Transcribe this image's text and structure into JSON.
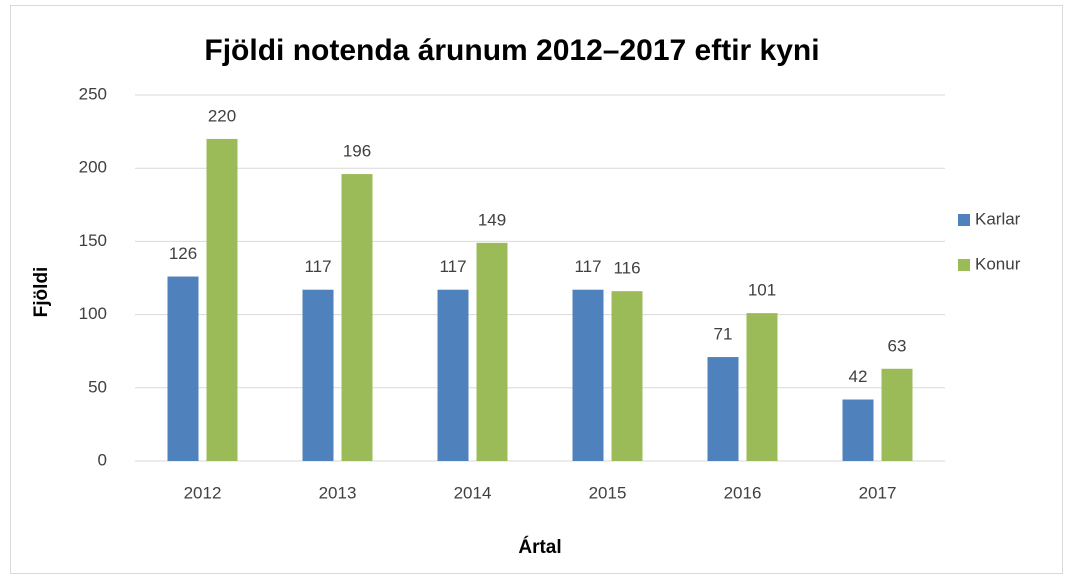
{
  "chart_data": {
    "type": "bar",
    "title": "Fjöldi notenda árunum 2012–2017 eftir kyni",
    "x_label": "Ártal",
    "y_label": "Fjöldi",
    "categories": [
      "2012",
      "2013",
      "2014",
      "2015",
      "2016",
      "2017"
    ],
    "series": [
      {
        "name": "Karlar",
        "color": "#4f81bd",
        "values": [
          126,
          117,
          117,
          117,
          71,
          42
        ]
      },
      {
        "name": "Konur",
        "color": "#9bbb59",
        "values": [
          220,
          196,
          149,
          116,
          101,
          63
        ]
      }
    ],
    "ylim": [
      0,
      250
    ],
    "yticks": [
      0,
      50,
      100,
      150,
      200,
      250
    ],
    "grid": true,
    "legend": "right"
  }
}
